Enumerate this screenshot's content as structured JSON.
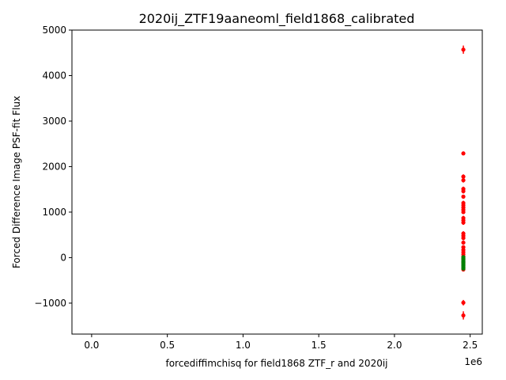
{
  "chart_data": {
    "type": "scatter",
    "title": "2020ij_ZTF19aaneoml_field1868_calibrated",
    "xlabel": "forcediffimchisq for field1868 ZTF_r and 2020ij",
    "ylabel": "Forced Difference Image PSF-fit Flux",
    "x_offset_label": "1e6",
    "xlim": [
      -130000,
      2580000
    ],
    "ylim": [
      -1680,
      5000
    ],
    "x_ticks": [
      {
        "value": 0,
        "label": "0.0"
      },
      {
        "value": 500000,
        "label": "0.5"
      },
      {
        "value": 1000000,
        "label": "1.0"
      },
      {
        "value": 1500000,
        "label": "1.5"
      },
      {
        "value": 2000000,
        "label": "2.0"
      },
      {
        "value": 2500000,
        "label": "2.5"
      }
    ],
    "y_ticks": [
      {
        "value": -1000,
        "label": "−1000"
      },
      {
        "value": 0,
        "label": "0"
      },
      {
        "value": 1000,
        "label": "1000"
      },
      {
        "value": 2000,
        "label": "2000"
      },
      {
        "value": 3000,
        "label": "3000"
      },
      {
        "value": 4000,
        "label": "4000"
      },
      {
        "value": 5000,
        "label": "5000"
      }
    ],
    "grid": false,
    "legend": "none",
    "series": [
      {
        "color": "#ff0000",
        "points": [
          {
            "x": 2455000,
            "y": 4570,
            "err": 90
          },
          {
            "x": 2455000,
            "y": 2290,
            "err": 40
          },
          {
            "x": 2455000,
            "y": 1780,
            "err": 50
          },
          {
            "x": 2455000,
            "y": 1700,
            "err": 50
          },
          {
            "x": 2455000,
            "y": 1510,
            "err": 50
          },
          {
            "x": 2455000,
            "y": 1460,
            "err": 50
          },
          {
            "x": 2455000,
            "y": 1340,
            "err": 40
          },
          {
            "x": 2455000,
            "y": 1200,
            "err": 50
          },
          {
            "x": 2455000,
            "y": 1150,
            "err": 50
          },
          {
            "x": 2455000,
            "y": 1100,
            "err": 50
          },
          {
            "x": 2455000,
            "y": 1050,
            "err": 50
          },
          {
            "x": 2455000,
            "y": 1000,
            "err": 40
          },
          {
            "x": 2455000,
            "y": 870,
            "err": 50
          },
          {
            "x": 2455000,
            "y": 820,
            "err": 50
          },
          {
            "x": 2455000,
            "y": 770,
            "err": 50
          },
          {
            "x": 2455000,
            "y": 530,
            "err": 50
          },
          {
            "x": 2455000,
            "y": 480,
            "err": 50
          },
          {
            "x": 2455000,
            "y": 430,
            "err": 50
          },
          {
            "x": 2455000,
            "y": 330,
            "err": 40
          },
          {
            "x": 2455000,
            "y": 230,
            "err": 40
          },
          {
            "x": 2455000,
            "y": 170,
            "err": 40
          },
          {
            "x": 2455000,
            "y": 120,
            "err": 40
          },
          {
            "x": 2455000,
            "y": 70,
            "err": 40
          },
          {
            "x": 2455000,
            "y": 20,
            "err": 30
          },
          {
            "x": 2455000,
            "y": -40,
            "err": 30
          },
          {
            "x": 2455000,
            "y": -100,
            "err": 30
          },
          {
            "x": 2455000,
            "y": -150,
            "err": 30
          },
          {
            "x": 2455000,
            "y": -210,
            "err": 30
          },
          {
            "x": 2455000,
            "y": -260,
            "err": 30
          },
          {
            "x": 2455000,
            "y": -990,
            "err": 60
          },
          {
            "x": 2455000,
            "y": -1270,
            "err": 90
          }
        ]
      },
      {
        "color": "#008000",
        "points": [
          {
            "x": 2455000,
            "y": 10,
            "err": 25
          },
          {
            "x": 2455000,
            "y": -20,
            "err": 25
          },
          {
            "x": 2455000,
            "y": -60,
            "err": 25
          },
          {
            "x": 2455000,
            "y": -90,
            "err": 25
          },
          {
            "x": 2455000,
            "y": -120,
            "err": 25
          },
          {
            "x": 2455000,
            "y": -150,
            "err": 25
          },
          {
            "x": 2455000,
            "y": -180,
            "err": 25
          },
          {
            "x": 2455000,
            "y": -210,
            "err": 25
          },
          {
            "x": 2455000,
            "y": -240,
            "err": 25
          }
        ]
      }
    ]
  }
}
